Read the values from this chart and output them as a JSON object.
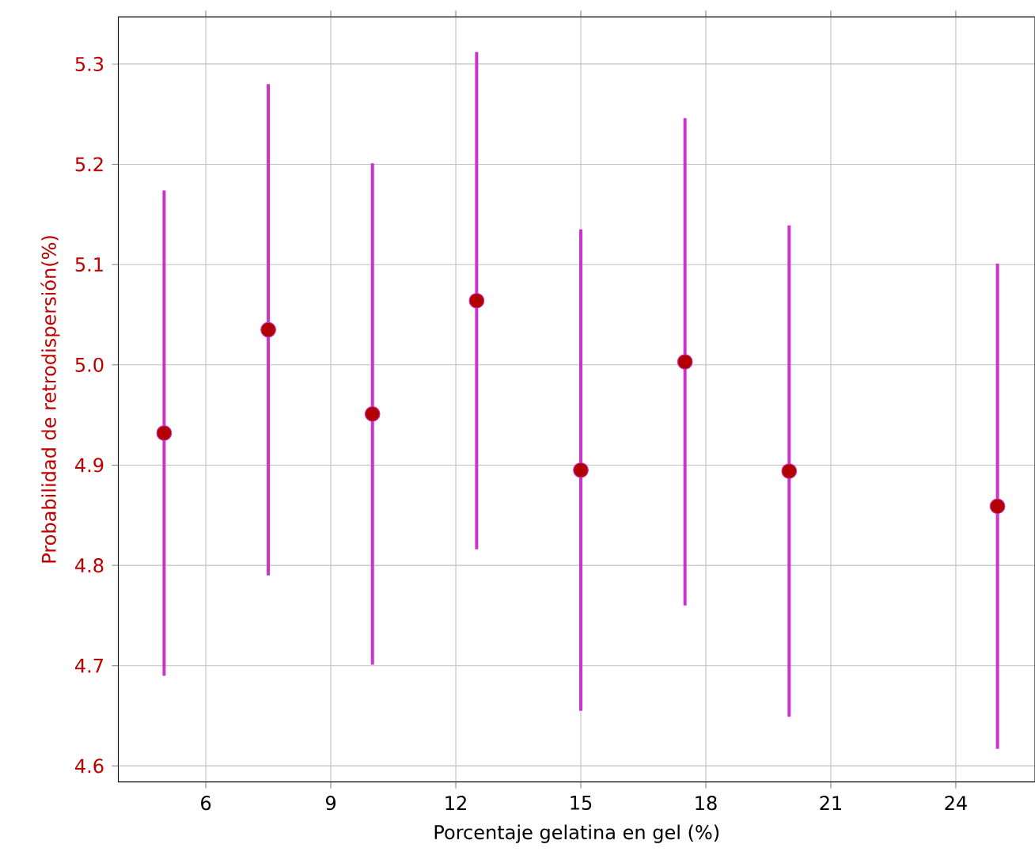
{
  "chart_data": {
    "type": "scatter",
    "xlabel": "Porcentaje gelatina en gel (%)",
    "ylabel": "Probabilidad de retrodispersión(%)",
    "x": [
      5,
      7.5,
      10,
      12.5,
      15,
      17.5,
      20,
      25
    ],
    "series": [
      {
        "color": "#cc33cc",
        "values": [
          4.932,
          5.035,
          4.951,
          5.064,
          4.895,
          5.003,
          4.894,
          4.859
        ],
        "errors": [
          0.242,
          0.245,
          0.25,
          0.248,
          0.24,
          0.243,
          0.245,
          0.242
        ]
      }
    ],
    "xlim": [
      3.9,
      25.9
    ],
    "ylim": [
      4.584,
      5.347
    ],
    "xticks": [
      6,
      9,
      12,
      15,
      18,
      21,
      24
    ],
    "yticks": [
      4.6,
      4.7,
      4.8,
      4.9,
      {
        "value": 5.0,
        "label": "5.0"
      },
      5.1,
      5.2,
      5.3
    ],
    "grid": true,
    "marker": "circle"
  }
}
